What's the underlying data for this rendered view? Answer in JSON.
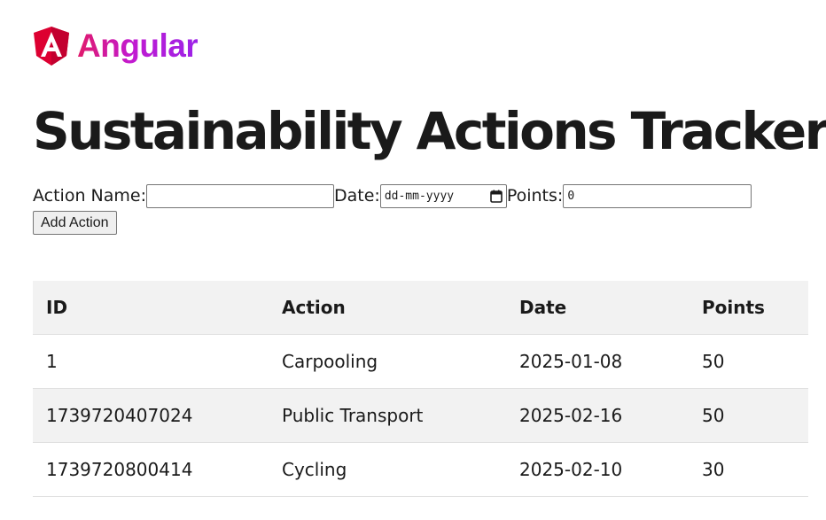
{
  "brand": {
    "logo_icon": "angular-shield-icon",
    "name": "Angular",
    "colors": {
      "shield": "#dd0031",
      "text_gradient_start": "#e11a6a",
      "text_gradient_end": "#9c22e8"
    }
  },
  "page_title": "Sustainability Actions Tracker",
  "form": {
    "action_name_label": "Action Name:",
    "action_name_value": "",
    "date_label": "Date:",
    "date_placeholder": "dd-mm-yyyy",
    "points_label": "Points:",
    "points_value": "0",
    "add_button_label": "Add Action"
  },
  "table": {
    "headers": [
      "ID",
      "Action",
      "Date",
      "Points"
    ],
    "rows": [
      [
        "1",
        "Carpooling",
        "2025-01-08",
        "50"
      ],
      [
        "1739720407024",
        "Public Transport",
        "2025-02-16",
        "50"
      ],
      [
        "1739720800414",
        "Cycling",
        "2025-02-10",
        "30"
      ]
    ]
  }
}
